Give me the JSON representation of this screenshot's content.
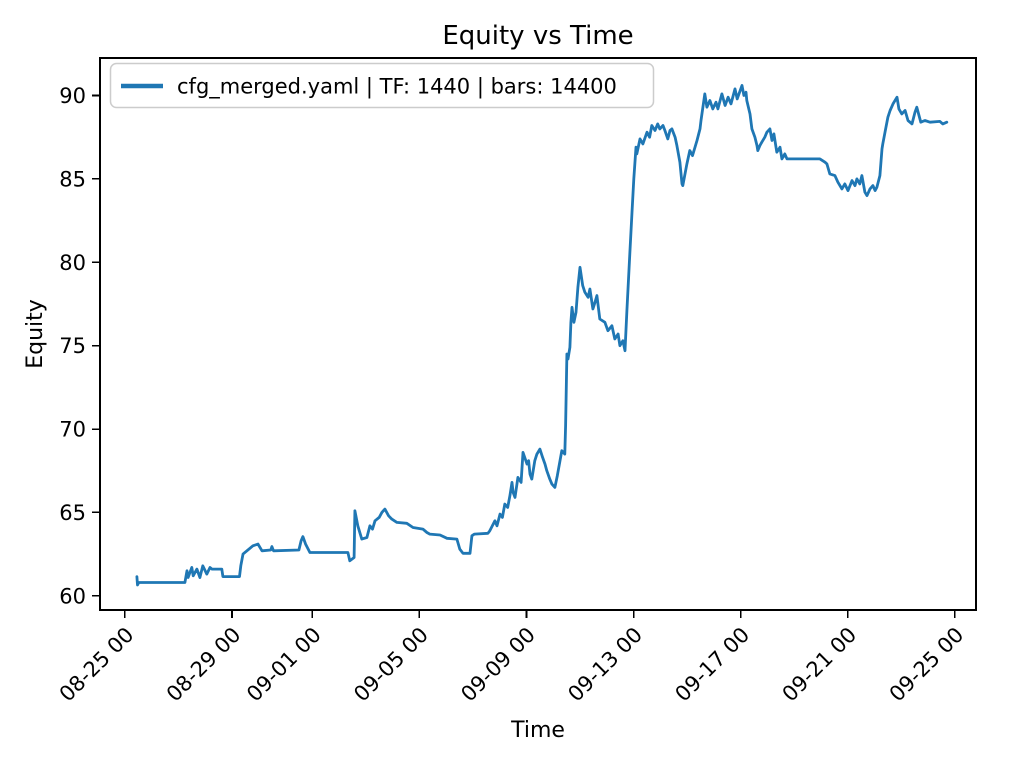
{
  "chart_data": {
    "type": "line",
    "title": "Equity vs Time",
    "xlabel": "Time",
    "ylabel": "Equity",
    "grid": false,
    "legend": {
      "position": "upper left",
      "entries": [
        "cfg_merged.yaml | TF: 1440 | bars: 14400"
      ]
    },
    "colors": {
      "line": "#1f77b4",
      "legend_edge": "#cccccc",
      "axis": "#000000",
      "background": "#ffffff"
    },
    "y_ticks": [
      60,
      65,
      70,
      75,
      80,
      85,
      90
    ],
    "x_ticks": [
      {
        "d": 0,
        "label": "08-25 00"
      },
      {
        "d": 4,
        "label": "08-29 00"
      },
      {
        "d": 7,
        "label": "09-01 00"
      },
      {
        "d": 11,
        "label": "09-05 00"
      },
      {
        "d": 15,
        "label": "09-09 00"
      },
      {
        "d": 19,
        "label": "09-13 00"
      },
      {
        "d": 23,
        "label": "09-17 00"
      },
      {
        "d": 27,
        "label": "09-21 00"
      },
      {
        "d": 31,
        "label": "09-25 00"
      }
    ],
    "xlim_days": [
      -0.93,
      31.79
    ],
    "ylim": [
      59.15,
      92.25
    ],
    "series": [
      {
        "name": "cfg_merged.yaml | TF: 1440 | bars: 14400",
        "x_unit": "days after 08-25 00",
        "points": [
          [
            0.45,
            61.15
          ],
          [
            0.47,
            60.65
          ],
          [
            0.52,
            60.8
          ],
          [
            2.24,
            60.8
          ],
          [
            2.32,
            61.5
          ],
          [
            2.36,
            61.1
          ],
          [
            2.5,
            61.7
          ],
          [
            2.55,
            61.2
          ],
          [
            2.69,
            61.6
          ],
          [
            2.8,
            61.1
          ],
          [
            2.91,
            61.8
          ],
          [
            3.06,
            61.3
          ],
          [
            3.18,
            61.7
          ],
          [
            3.25,
            61.6
          ],
          [
            3.62,
            61.6
          ],
          [
            3.66,
            61.15
          ],
          [
            4.28,
            61.15
          ],
          [
            4.33,
            61.8
          ],
          [
            4.41,
            62.5
          ],
          [
            4.78,
            63.0
          ],
          [
            4.97,
            63.1
          ],
          [
            5.12,
            62.7
          ],
          [
            5.45,
            62.75
          ],
          [
            5.49,
            62.95
          ],
          [
            5.55,
            62.7
          ],
          [
            6.5,
            62.75
          ],
          [
            6.58,
            63.3
          ],
          [
            6.65,
            63.55
          ],
          [
            6.75,
            63.1
          ],
          [
            6.91,
            62.6
          ],
          [
            8.33,
            62.6
          ],
          [
            8.4,
            62.1
          ],
          [
            8.56,
            62.3
          ],
          [
            8.59,
            65.1
          ],
          [
            8.7,
            64.2
          ],
          [
            8.85,
            63.4
          ],
          [
            9.04,
            63.5
          ],
          [
            9.15,
            64.2
          ],
          [
            9.25,
            64.0
          ],
          [
            9.34,
            64.5
          ],
          [
            9.5,
            64.7
          ],
          [
            9.6,
            65.0
          ],
          [
            9.71,
            65.2
          ],
          [
            9.85,
            64.8
          ],
          [
            9.97,
            64.6
          ],
          [
            10.16,
            64.4
          ],
          [
            10.53,
            64.35
          ],
          [
            10.76,
            64.1
          ],
          [
            11.13,
            64.0
          ],
          [
            11.28,
            63.8
          ],
          [
            11.39,
            63.7
          ],
          [
            11.77,
            63.65
          ],
          [
            12.03,
            63.45
          ],
          [
            12.4,
            63.4
          ],
          [
            12.51,
            62.8
          ],
          [
            12.63,
            62.55
          ],
          [
            12.89,
            62.55
          ],
          [
            12.96,
            63.6
          ],
          [
            13.05,
            63.7
          ],
          [
            13.56,
            63.75
          ],
          [
            13.63,
            63.9
          ],
          [
            13.82,
            64.5
          ],
          [
            13.9,
            64.2
          ],
          [
            14.01,
            64.9
          ],
          [
            14.1,
            64.7
          ],
          [
            14.19,
            65.5
          ],
          [
            14.3,
            65.3
          ],
          [
            14.38,
            66.0
          ],
          [
            14.46,
            66.8
          ],
          [
            14.5,
            66.2
          ],
          [
            14.57,
            65.9
          ],
          [
            14.68,
            67.1
          ],
          [
            14.8,
            66.8
          ],
          [
            14.87,
            68.6
          ],
          [
            15.02,
            67.9
          ],
          [
            15.08,
            68.1
          ],
          [
            15.13,
            67.3
          ],
          [
            15.2,
            67.0
          ],
          [
            15.31,
            68.1
          ],
          [
            15.39,
            68.5
          ],
          [
            15.5,
            68.8
          ],
          [
            15.6,
            68.3
          ],
          [
            15.69,
            67.9
          ],
          [
            15.76,
            67.5
          ],
          [
            15.87,
            67.0
          ],
          [
            15.95,
            66.7
          ],
          [
            16.06,
            66.5
          ],
          [
            16.15,
            67.2
          ],
          [
            16.25,
            68.1
          ],
          [
            16.32,
            68.7
          ],
          [
            16.43,
            68.5
          ],
          [
            16.46,
            70.2
          ],
          [
            16.51,
            74.5
          ],
          [
            16.55,
            74.2
          ],
          [
            16.62,
            74.9
          ],
          [
            16.66,
            76.4
          ],
          [
            16.7,
            77.3
          ],
          [
            16.77,
            76.4
          ],
          [
            16.85,
            77.0
          ],
          [
            16.92,
            78.5
          ],
          [
            17.0,
            79.7
          ],
          [
            17.1,
            78.6
          ],
          [
            17.18,
            78.2
          ],
          [
            17.3,
            77.9
          ],
          [
            17.37,
            78.4
          ],
          [
            17.48,
            77.2
          ],
          [
            17.56,
            77.6
          ],
          [
            17.63,
            78.0
          ],
          [
            17.74,
            76.6
          ],
          [
            17.93,
            76.4
          ],
          [
            18.04,
            75.9
          ],
          [
            18.19,
            76.2
          ],
          [
            18.3,
            75.4
          ],
          [
            18.42,
            75.7
          ],
          [
            18.49,
            75.0
          ],
          [
            18.6,
            75.3
          ],
          [
            18.68,
            74.7
          ],
          [
            18.75,
            77.1
          ],
          [
            18.86,
            80.5
          ],
          [
            18.94,
            83.0
          ],
          [
            19.01,
            85.0
          ],
          [
            19.09,
            86.9
          ],
          [
            19.12,
            86.5
          ],
          [
            19.24,
            87.4
          ],
          [
            19.35,
            87.1
          ],
          [
            19.5,
            87.8
          ],
          [
            19.6,
            87.5
          ],
          [
            19.68,
            88.2
          ],
          [
            19.8,
            87.9
          ],
          [
            19.9,
            88.3
          ],
          [
            19.98,
            88.0
          ],
          [
            20.1,
            88.2
          ],
          [
            20.17,
            87.9
          ],
          [
            20.28,
            87.4
          ],
          [
            20.36,
            87.9
          ],
          [
            20.43,
            88.0
          ],
          [
            20.55,
            87.5
          ],
          [
            20.62,
            87.0
          ],
          [
            20.73,
            86.0
          ],
          [
            20.81,
            84.7
          ],
          [
            20.84,
            84.6
          ],
          [
            20.99,
            85.9
          ],
          [
            21.1,
            86.7
          ],
          [
            21.2,
            86.4
          ],
          [
            21.37,
            87.3
          ],
          [
            21.48,
            88.0
          ],
          [
            21.52,
            88.5
          ],
          [
            21.66,
            90.1
          ],
          [
            21.74,
            89.3
          ],
          [
            21.85,
            89.7
          ],
          [
            21.96,
            89.2
          ],
          [
            22.08,
            89.6
          ],
          [
            22.15,
            89.2
          ],
          [
            22.3,
            90.1
          ],
          [
            22.42,
            89.4
          ],
          [
            22.53,
            89.9
          ],
          [
            22.64,
            89.5
          ],
          [
            22.79,
            90.4
          ],
          [
            22.87,
            89.8
          ],
          [
            23.05,
            90.6
          ],
          [
            23.12,
            90.0
          ],
          [
            23.2,
            90.2
          ],
          [
            23.23,
            89.7
          ],
          [
            23.35,
            88.9
          ],
          [
            23.42,
            88.0
          ],
          [
            23.53,
            87.5
          ],
          [
            23.61,
            87.0
          ],
          [
            23.64,
            86.7
          ],
          [
            23.72,
            87.0
          ],
          [
            23.79,
            87.2
          ],
          [
            23.9,
            87.5
          ],
          [
            23.98,
            87.8
          ],
          [
            24.09,
            88.0
          ],
          [
            24.17,
            87.3
          ],
          [
            24.24,
            87.7
          ],
          [
            24.35,
            86.6
          ],
          [
            24.47,
            86.9
          ],
          [
            24.54,
            86.2
          ],
          [
            24.65,
            86.5
          ],
          [
            24.73,
            86.2
          ],
          [
            25.96,
            86.2
          ],
          [
            26.15,
            86.0
          ],
          [
            26.22,
            85.9
          ],
          [
            26.33,
            85.3
          ],
          [
            26.52,
            85.2
          ],
          [
            26.63,
            84.8
          ],
          [
            26.78,
            84.4
          ],
          [
            26.89,
            84.7
          ],
          [
            27.01,
            84.3
          ],
          [
            27.16,
            84.9
          ],
          [
            27.27,
            84.6
          ],
          [
            27.34,
            85.0
          ],
          [
            27.45,
            84.7
          ],
          [
            27.53,
            85.2
          ],
          [
            27.64,
            84.2
          ],
          [
            27.72,
            84.0
          ],
          [
            27.83,
            84.4
          ],
          [
            27.94,
            84.6
          ],
          [
            28.02,
            84.3
          ],
          [
            28.09,
            84.5
          ],
          [
            28.2,
            85.2
          ],
          [
            28.28,
            86.8
          ],
          [
            28.31,
            87.1
          ],
          [
            28.39,
            87.8
          ],
          [
            28.5,
            88.7
          ],
          [
            28.58,
            89.1
          ],
          [
            28.69,
            89.5
          ],
          [
            28.84,
            89.9
          ],
          [
            28.91,
            89.2
          ],
          [
            29.02,
            88.9
          ],
          [
            29.14,
            89.1
          ],
          [
            29.25,
            88.5
          ],
          [
            29.4,
            88.3
          ],
          [
            29.51,
            89.0
          ],
          [
            29.58,
            89.3
          ],
          [
            29.66,
            88.8
          ],
          [
            29.73,
            88.4
          ],
          [
            29.88,
            88.5
          ],
          [
            30.07,
            88.4
          ],
          [
            30.44,
            88.45
          ],
          [
            30.55,
            88.3
          ],
          [
            30.7,
            88.4
          ]
        ]
      }
    ]
  }
}
